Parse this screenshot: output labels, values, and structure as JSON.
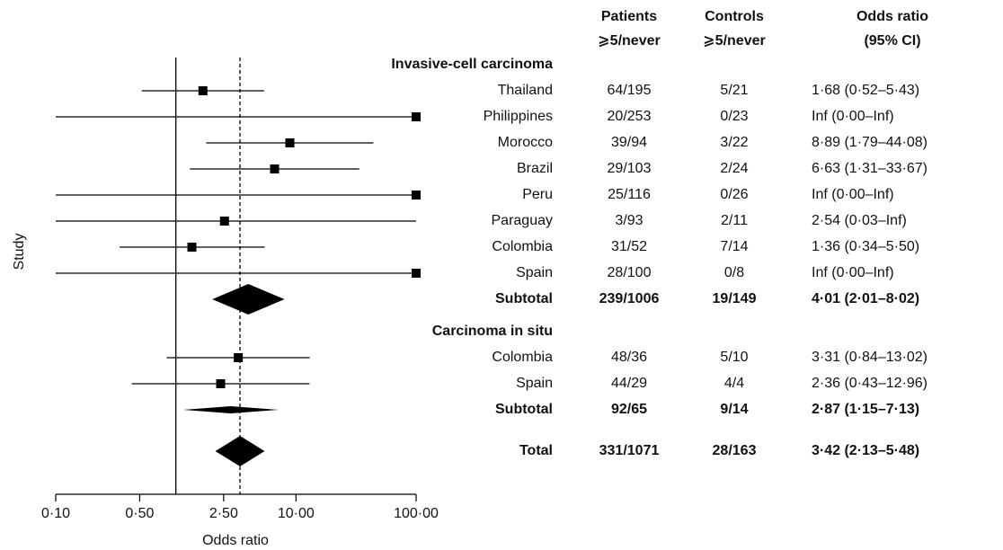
{
  "chart_data": {
    "type": "forest",
    "xlabel": "Odds ratio",
    "ylabel": "Study",
    "log_x": true,
    "xlim": [
      0.1,
      100
    ],
    "xticks": [
      {
        "value": 0.1,
        "label": "0·10"
      },
      {
        "value": 0.5,
        "label": "0·50"
      },
      {
        "value": 2.5,
        "label": "2·50"
      },
      {
        "value": 10,
        "label": "10·00"
      },
      {
        "value": 100,
        "label": "100·00"
      }
    ],
    "reference_line": 1,
    "color": "#000000",
    "column_headers": [
      {
        "title": "Patients",
        "subtitle": "⩾5/never"
      },
      {
        "title": "Controls",
        "subtitle": "⩾5/never"
      },
      {
        "title": "Odds ratio",
        "subtitle": "(95% CI)"
      }
    ],
    "groups": [
      {
        "name": "Invasive-cell carcinoma",
        "studies": [
          {
            "name": "Thailand",
            "patients": "64/195",
            "controls": "5/21",
            "ci_label": "1·68 (0·52–5·43)",
            "or": 1.68,
            "lower": 0.52,
            "upper": 5.43
          },
          {
            "name": "Philippines",
            "patients": "20/253",
            "controls": "0/23",
            "ci_label": "Inf (0·00–Inf)",
            "or": null,
            "lower": 0,
            "upper": null
          },
          {
            "name": "Morocco",
            "patients": "39/94",
            "controls": "3/22",
            "ci_label": "8·89 (1·79–44·08)",
            "or": 8.89,
            "lower": 1.79,
            "upper": 44.08
          },
          {
            "name": "Brazil",
            "patients": "29/103",
            "controls": "2/24",
            "ci_label": "6·63 (1·31–33·67)",
            "or": 6.63,
            "lower": 1.31,
            "upper": 33.67
          },
          {
            "name": "Peru",
            "patients": "25/116",
            "controls": "0/26",
            "ci_label": "Inf (0·00–Inf)",
            "or": null,
            "lower": 0,
            "upper": null
          },
          {
            "name": "Paraguay",
            "patients": "3/93",
            "controls": "2/11",
            "ci_label": "2·54 (0·03–Inf)",
            "or": 2.54,
            "lower": 0.03,
            "upper": null
          },
          {
            "name": "Colombia",
            "patients": "31/52",
            "controls": "7/14",
            "ci_label": "1·36 (0·34–5·50)",
            "or": 1.36,
            "lower": 0.34,
            "upper": 5.5
          },
          {
            "name": "Spain",
            "patients": "28/100",
            "controls": "0/8",
            "ci_label": "Inf (0·00–Inf)",
            "or": null,
            "lower": 0,
            "upper": null
          }
        ],
        "subtotal": {
          "name": "Subtotal",
          "patients": "239/1006",
          "controls": "19/149",
          "ci_label": "4·01 (2·01–8·02)",
          "or": 4.01,
          "lower": 2.01,
          "upper": 8.02
        }
      },
      {
        "name": "Carcinoma in situ",
        "studies": [
          {
            "name": "Colombia",
            "patients": "48/36",
            "controls": "5/10",
            "ci_label": "3·31 (0·84–13·02)",
            "or": 3.31,
            "lower": 0.84,
            "upper": 13.02
          },
          {
            "name": "Spain",
            "patients": "44/29",
            "controls": "4/4",
            "ci_label": "2·36 (0·43–12·96)",
            "or": 2.36,
            "lower": 0.43,
            "upper": 12.96
          }
        ],
        "subtotal": {
          "name": "Subtotal",
          "patients": "92/65",
          "controls": "9/14",
          "ci_label": "2·87 (1·15–7·13)",
          "or": 2.87,
          "lower": 1.15,
          "upper": 7.13
        }
      }
    ],
    "total": {
      "name": "Total",
      "patients": "331/1071",
      "controls": "28/163",
      "ci_label": "3·42 (2·13–5·48)",
      "or": 3.42,
      "lower": 2.13,
      "upper": 5.48
    }
  }
}
